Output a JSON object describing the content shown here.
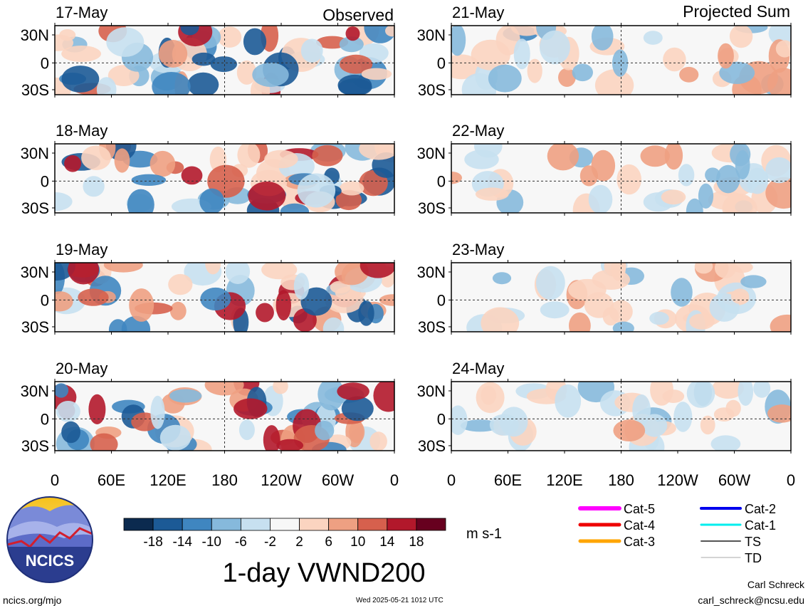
{
  "chart_data": {
    "type": "heatmap",
    "title": "1-day VWND200",
    "units": "m s-1",
    "columns": {
      "left": "Observed",
      "right": "Projected Sum"
    },
    "panels": [
      {
        "date": "17-May",
        "column": "left"
      },
      {
        "date": "18-May",
        "column": "left"
      },
      {
        "date": "19-May",
        "column": "left"
      },
      {
        "date": "20-May",
        "column": "left"
      },
      {
        "date": "21-May",
        "column": "right"
      },
      {
        "date": "22-May",
        "column": "right"
      },
      {
        "date": "23-May",
        "column": "right"
      },
      {
        "date": "24-May",
        "column": "right"
      }
    ],
    "x_ticks": [
      "0",
      "60E",
      "120E",
      "180",
      "120W",
      "60W",
      "0"
    ],
    "y_ticks": [
      "30N",
      "0",
      "30S"
    ],
    "colorbar": {
      "labels": [
        "-18",
        "-14",
        "-10",
        "-6",
        "-2",
        "2",
        "6",
        "10",
        "14",
        "18"
      ],
      "colors": [
        "#0b2a4f",
        "#1c5a96",
        "#3f86c0",
        "#86b9dc",
        "#c7e0f0",
        "#f7f7f7",
        "#fbd4c0",
        "#eea082",
        "#d6604d",
        "#b2182b",
        "#67001f"
      ]
    },
    "storm_legend": [
      {
        "label": "Cat-5",
        "color": "#ff00ff"
      },
      {
        "label": "Cat-4",
        "color": "#ee0000"
      },
      {
        "label": "Cat-3",
        "color": "#ffa500"
      },
      {
        "label": "Cat-2",
        "color": "#0000ee"
      },
      {
        "label": "Cat-1",
        "color": "#00eeee"
      },
      {
        "label": "TS",
        "color": "#555555"
      },
      {
        "label": "TD",
        "color": "#aaaaaa"
      }
    ]
  },
  "logo": {
    "text": "NCICS"
  },
  "footer": {
    "site": "ncics.org/mjo",
    "timestamp": "Wed 2025-05-21 1012 UTC",
    "author": "Carl Schreck",
    "email": "carl_schreck@ncsu.edu"
  }
}
